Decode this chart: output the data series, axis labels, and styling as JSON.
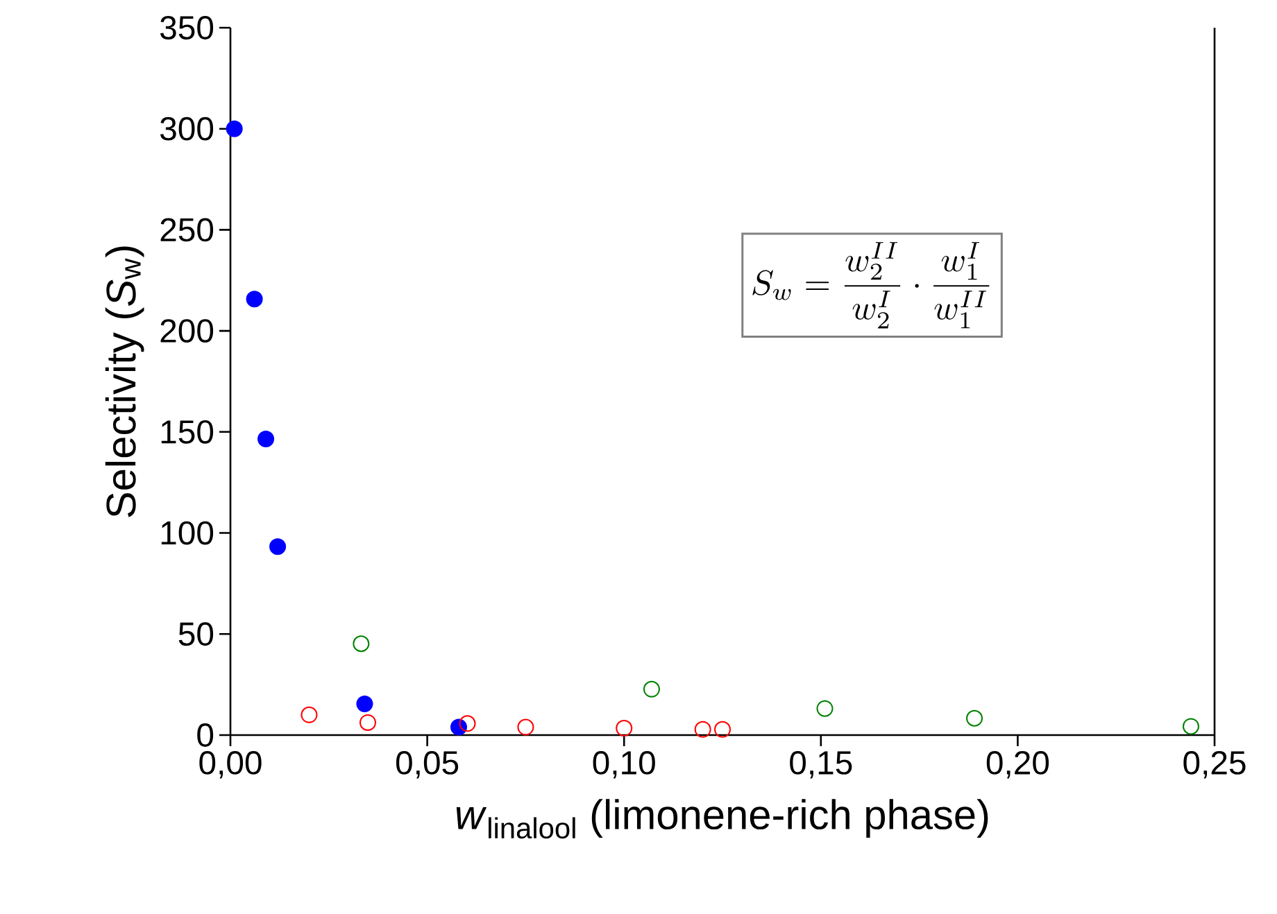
{
  "chart_data": {
    "type": "scatter",
    "xlabel": "*w*$_{linalool}$ (limonene-rich phase)",
    "ylabel": "Selectivity (*S*$_{w}$)",
    "annotations": [
      "S_w = \\frac{w_2^{II}}{w_2^{I}} \\cdot \\frac{w_1^{I}}{w_1^{II}}"
    ],
    "marker": "circle",
    "series": [
      {
        "color": "#0000ff",
        "x": [
          0.001,
          0.0061,
          0.009,
          0.012,
          0.0341,
          0.058
        ],
        "values": [
          300,
          215.7,
          146.5,
          93.2,
          15.4,
          3.9
        ]
      },
      {
        "color": "#ff0000",
        "x": [
          0.02,
          0.0349,
          0.0602,
          0.075,
          0.1,
          0.12,
          0.125
        ],
        "values": [
          10,
          6.2,
          5.7,
          3.9,
          3.4,
          2.8,
          2.8
        ]
      },
      {
        "color": "#008000",
        "x": [
          0.0332,
          0.107,
          0.151,
          0.189,
          0.244
        ],
        "values": [
          45.2,
          22.7,
          13.1,
          8.3,
          4.3
        ]
      }
    ],
    "xlim": [
      0,
      0.25
    ],
    "ylim": [
      0,
      350
    ],
    "xticks": [
      {
        "value": 0,
        "label": "0,00"
      },
      {
        "value": 0.05,
        "label": "0,05"
      },
      {
        "value": 0.1,
        "label": "0,10"
      },
      {
        "value": 0.15,
        "label": "0,15"
      },
      {
        "value": 0.2,
        "label": "0,20"
      },
      {
        "value": 0.25,
        "label": "0,25"
      }
    ],
    "yticks": [
      0,
      50,
      100,
      150,
      200,
      250,
      300,
      350
    ],
    "grid": false
  }
}
